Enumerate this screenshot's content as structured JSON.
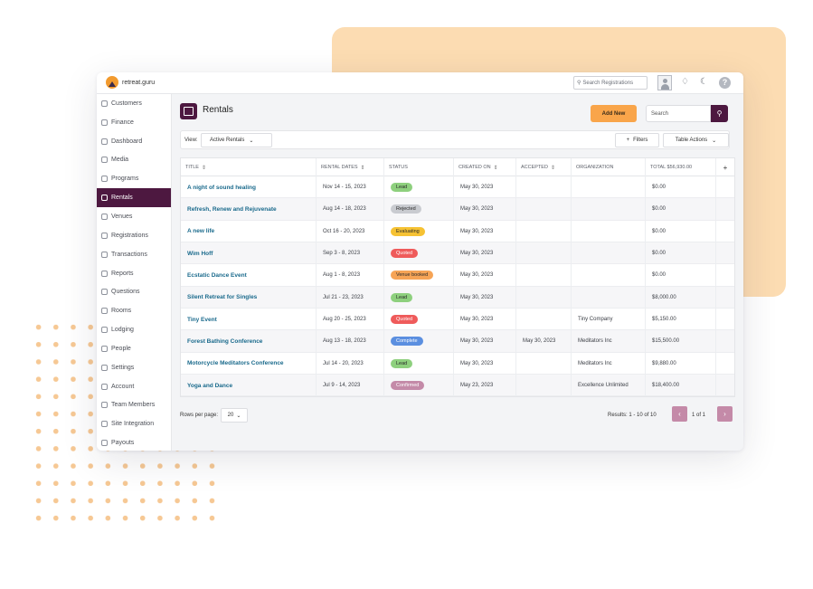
{
  "brand": {
    "name": "retreat.guru"
  },
  "topbar": {
    "search_placeholder": "Search Registrations",
    "icons": [
      "search-icon",
      "avatar",
      "bell-icon",
      "moon-icon",
      "help-icon"
    ]
  },
  "sidebar": {
    "items": [
      {
        "label": "Customers",
        "icon": "clipboard-icon"
      },
      {
        "label": "Finance",
        "icon": "dollar-icon"
      },
      {
        "label": "Dashboard",
        "icon": "home-icon"
      },
      {
        "label": "Media",
        "icon": "media-icon"
      },
      {
        "label": "Programs",
        "icon": "calendar-icon"
      },
      {
        "label": "Rentals",
        "icon": "calendar-icon",
        "active": true
      },
      {
        "label": "Venues",
        "icon": "building-icon"
      },
      {
        "label": "Registrations",
        "icon": "users-icon"
      },
      {
        "label": "Transactions",
        "icon": "dollar-icon"
      },
      {
        "label": "Reports",
        "icon": "chart-icon"
      },
      {
        "label": "Questions",
        "icon": "chat-icon"
      },
      {
        "label": "Rooms",
        "icon": "door-icon"
      },
      {
        "label": "Lodging",
        "icon": "door-icon"
      },
      {
        "label": "People",
        "icon": "people-icon"
      },
      {
        "label": "Settings",
        "icon": "sliders-icon"
      },
      {
        "label": "Account",
        "icon": "dollar-icon"
      },
      {
        "label": "Team Members",
        "icon": "user-icon"
      },
      {
        "label": "Site Integration",
        "icon": "plug-icon"
      },
      {
        "label": "Payouts",
        "icon": "dollar-icon"
      }
    ]
  },
  "page": {
    "title": "Rentals",
    "add_new": "Add New",
    "search_placeholder": "Search"
  },
  "toolbar": {
    "view_label": "View:",
    "view_value": "Active Rentals",
    "filters": "Filters",
    "table_actions": "Table Actions"
  },
  "table": {
    "columns": [
      "TITLE",
      "RENTAL DATES",
      "STATUS",
      "CREATED ON",
      "ACCEPTED",
      "ORGANIZATION",
      "TOTAL $56,930.00"
    ],
    "rows": [
      {
        "title": "A night of sound healing",
        "dates": "Nov 14 - 15, 2023",
        "status": "Lead",
        "created": "May 30, 2023",
        "accepted": "",
        "organization": "",
        "total": "$0.00"
      },
      {
        "title": "Refresh, Renew and Rejuvenate",
        "dates": "Aug 14 - 18, 2023",
        "status": "Rejected",
        "created": "May 30, 2023",
        "accepted": "",
        "organization": "",
        "total": "$0.00"
      },
      {
        "title": "A new life",
        "dates": "Oct 16 - 20, 2023",
        "status": "Evaluating",
        "created": "May 30, 2023",
        "accepted": "",
        "organization": "",
        "total": "$0.00"
      },
      {
        "title": "Wim Hoff",
        "dates": "Sep 3 - 8, 2023",
        "status": "Quoted",
        "created": "May 30, 2023",
        "accepted": "",
        "organization": "",
        "total": "$0.00"
      },
      {
        "title": "Ecstatic Dance Event",
        "dates": "Aug 1 - 8, 2023",
        "status": "Venue booked",
        "created": "May 30, 2023",
        "accepted": "",
        "organization": "",
        "total": "$0.00"
      },
      {
        "title": "Silent Retreat for Singles",
        "dates": "Jul 21 - 23, 2023",
        "status": "Lead",
        "created": "May 30, 2023",
        "accepted": "",
        "organization": "",
        "total": "$8,000.00"
      },
      {
        "title": "Tiny Event",
        "dates": "Aug 20 - 25, 2023",
        "status": "Quoted",
        "created": "May 30, 2023",
        "accepted": "",
        "organization": "Tiny Company",
        "total": "$5,150.00"
      },
      {
        "title": "Forest Bathing Conference",
        "dates": "Aug 13 - 18, 2023",
        "status": "Complete",
        "created": "May 30, 2023",
        "accepted": "May 30, 2023",
        "organization": "Meditators Inc",
        "total": "$15,500.00"
      },
      {
        "title": "Motorcycle Meditators Conference",
        "dates": "Jul 14 - 20, 2023",
        "status": "Lead",
        "created": "May 30, 2023",
        "accepted": "",
        "organization": "Meditators Inc",
        "total": "$9,880.00"
      },
      {
        "title": "Yoga and Dance",
        "dates": "Jul 9 - 14, 2023",
        "status": "Confirmed",
        "created": "May 23, 2023",
        "accepted": "",
        "organization": "Excellence Unlimited",
        "total": "$18,400.00"
      }
    ]
  },
  "status_colors": {
    "Lead": "#8ed07e",
    "Rejected": "#c9cbd0",
    "Evaluating": "#f6c233",
    "Quoted": "#ef5b5b",
    "Venue booked": "#f6a456",
    "Complete": "#5b8fe0",
    "Confirmed": "#c48aa8"
  },
  "footer": {
    "rows_per_page_label": "Rows per page:",
    "rows_per_page_value": "20",
    "results": "Results: 1 - 10 of 10",
    "page_of": "1 of 1"
  }
}
